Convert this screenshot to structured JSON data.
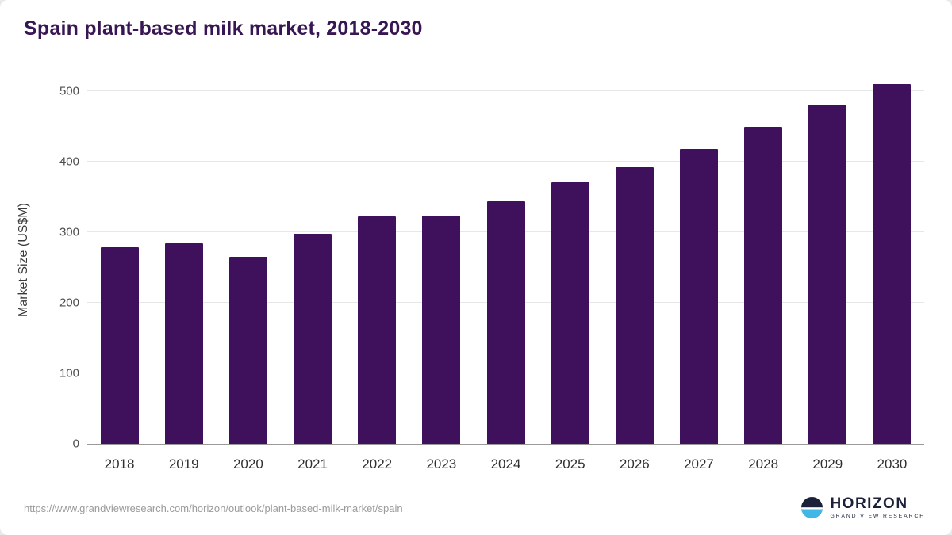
{
  "title": "Spain plant-based milk market, 2018-2030",
  "source_url": "https://www.grandviewresearch.com/horizon/outlook/plant-based-milk-market/spain",
  "logo": {
    "name": "HORIZON",
    "subtitle": "GRAND VIEW RESEARCH",
    "icon": "horizon-circle-icon"
  },
  "colors": {
    "bar": "#3f115c",
    "title": "#371653",
    "gridline": "#e7e7e7",
    "axis_line": "#9a9a9a",
    "logo_accent": "#3fb8e8",
    "logo_dark": "#1c2038"
  },
  "chart_data": {
    "type": "bar",
    "title": "Spain plant-based milk market, 2018-2030",
    "categories": [
      "2018",
      "2019",
      "2020",
      "2021",
      "2022",
      "2023",
      "2024",
      "2025",
      "2026",
      "2027",
      "2028",
      "2029",
      "2030"
    ],
    "values": [
      278,
      284,
      265,
      298,
      322,
      324,
      344,
      371,
      392,
      418,
      449,
      481,
      510
    ],
    "xlabel": "",
    "ylabel": "Market Size (US$M)",
    "ylim": [
      0,
      520
    ],
    "yticks": [
      0,
      100,
      200,
      300,
      400,
      500
    ],
    "grid": true,
    "legend": "none"
  }
}
